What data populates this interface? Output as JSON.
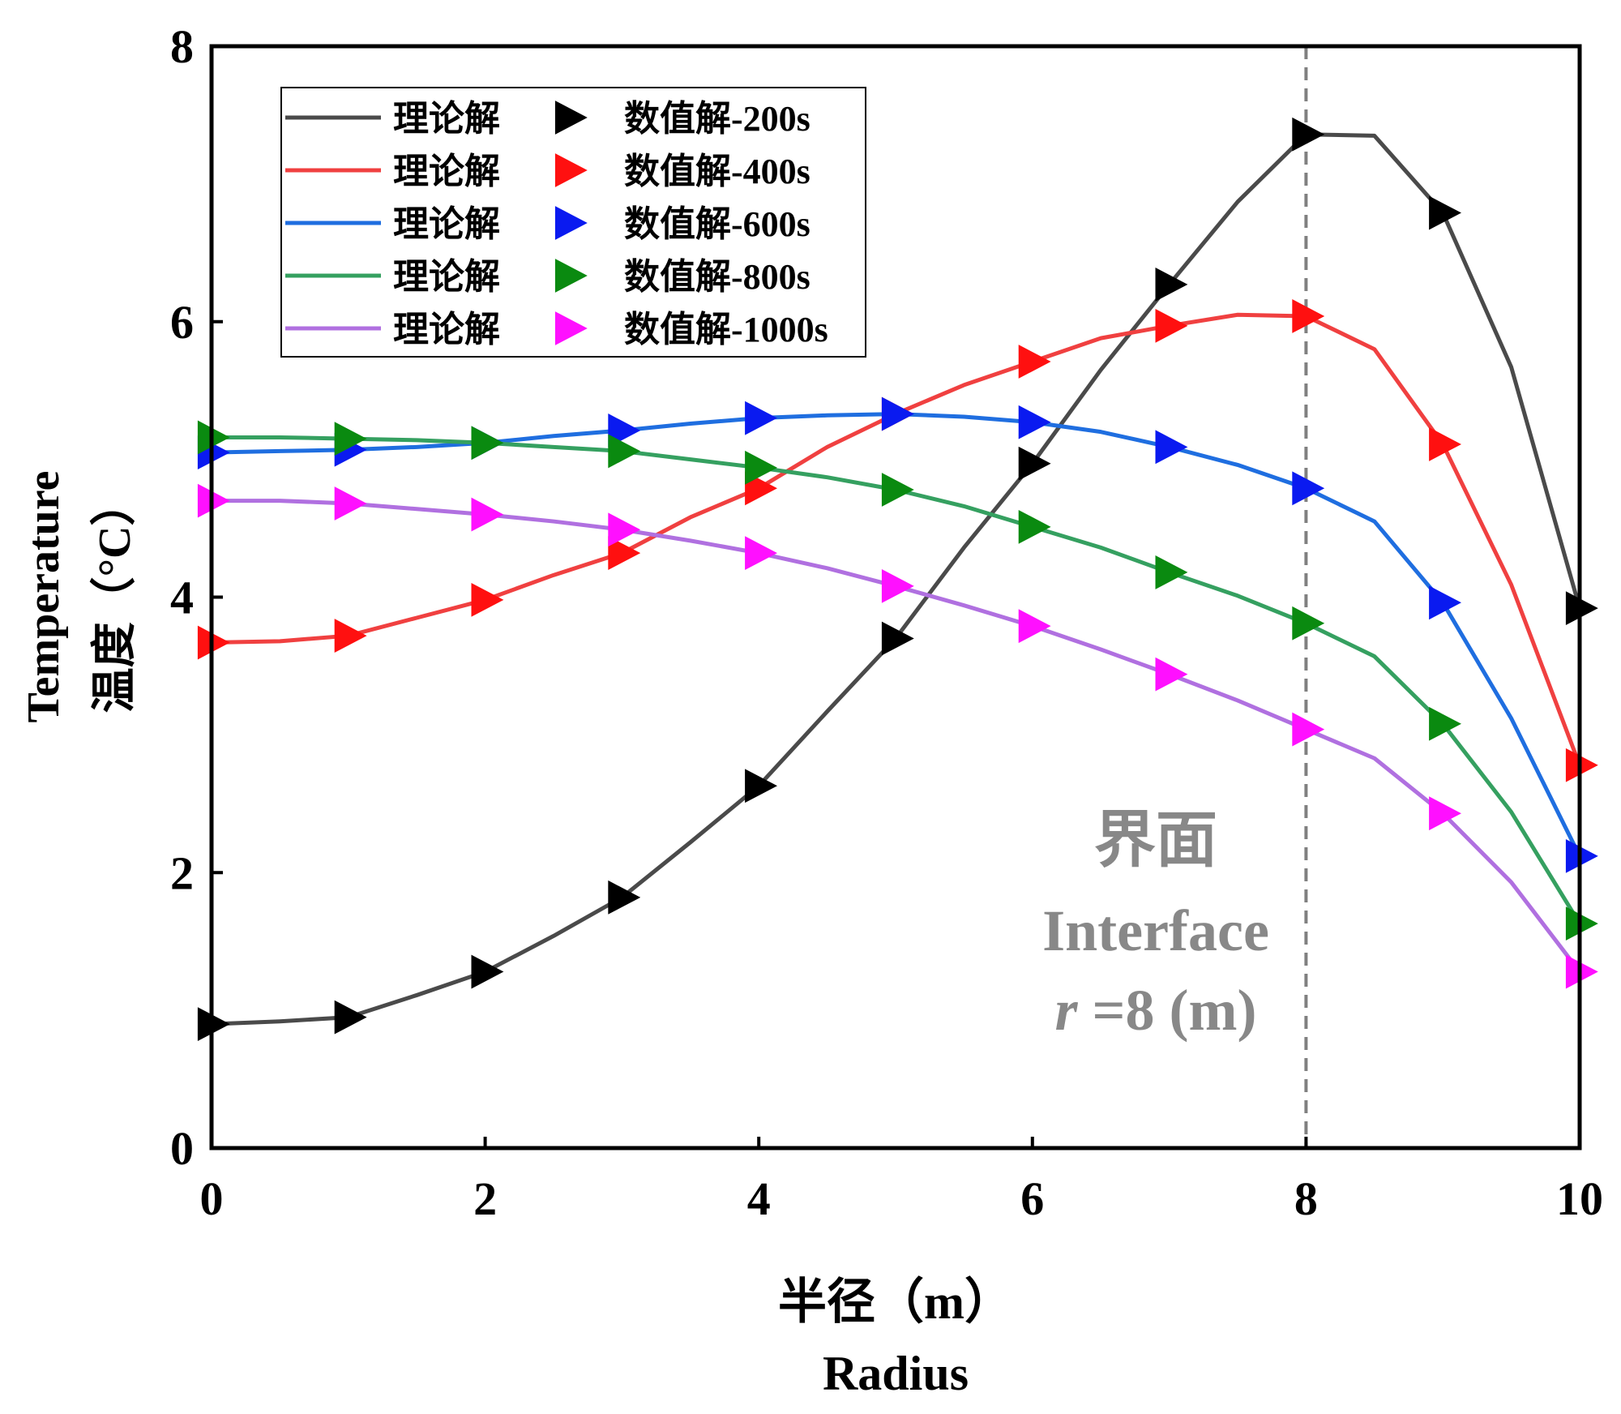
{
  "chart_data": {
    "type": "line",
    "xlabel_cn": "半径（m）",
    "xlabel_en": "Radius",
    "ylabel_en": "Temperature",
    "ylabel_cn": "温度（°C）",
    "xlim": [
      0,
      10
    ],
    "ylim": [
      0,
      8
    ],
    "xticks": [
      "0",
      "2",
      "4",
      "6",
      "8",
      "10"
    ],
    "yticks": [
      "0",
      "2",
      "4",
      "6",
      "8"
    ],
    "grid": false,
    "legend_position": "top-left",
    "x": [
      0,
      0.5,
      1,
      1.5,
      2,
      2.5,
      3,
      3.5,
      4,
      4.5,
      5,
      5.5,
      6,
      6.5,
      7,
      7.5,
      8,
      8.5,
      9,
      9.5,
      10
    ],
    "marker_x": [
      0,
      1,
      2,
      3,
      4,
      5,
      6,
      7,
      8,
      9,
      10
    ],
    "series": [
      {
        "name": "理论解",
        "marker_name": "数值解-200s",
        "line_color": "#4a4a4a",
        "marker_color": "#000000",
        "values": [
          0.9,
          0.92,
          0.95,
          1.11,
          1.28,
          1.54,
          1.82,
          2.22,
          2.63,
          3.17,
          3.7,
          4.36,
          4.97,
          5.65,
          6.27,
          6.87,
          7.36,
          7.35,
          6.79,
          5.67,
          3.92
        ],
        "marker_values": [
          0.9,
          0.95,
          1.28,
          1.82,
          2.63,
          3.7,
          4.97,
          6.27,
          7.36,
          6.79,
          3.92
        ]
      },
      {
        "name": "理论解",
        "marker_name": "数值解-400s",
        "line_color": "#f04040",
        "marker_color": "#ff1010",
        "values": [
          3.67,
          3.68,
          3.72,
          3.85,
          3.98,
          4.16,
          4.32,
          4.58,
          4.79,
          5.09,
          5.33,
          5.54,
          5.71,
          5.88,
          5.97,
          6.05,
          6.04,
          5.8,
          5.11,
          4.09,
          2.78
        ],
        "marker_values": [
          3.67,
          3.72,
          3.98,
          4.32,
          4.79,
          5.33,
          5.71,
          5.97,
          6.04,
          5.11,
          2.78
        ]
      },
      {
        "name": "理论解",
        "marker_name": "数值解-600s",
        "line_color": "#1f6ee0",
        "marker_color": "#0a1af0",
        "values": [
          5.05,
          5.06,
          5.07,
          5.09,
          5.12,
          5.17,
          5.21,
          5.26,
          5.3,
          5.32,
          5.33,
          5.31,
          5.27,
          5.2,
          5.09,
          4.96,
          4.79,
          4.55,
          3.96,
          3.12,
          2.12
        ],
        "marker_values": [
          5.05,
          5.07,
          5.12,
          5.21,
          5.3,
          5.33,
          5.27,
          5.09,
          4.79,
          3.96,
          2.12
        ]
      },
      {
        "name": "理论解",
        "marker_name": "数值解-800s",
        "line_color": "#35a060",
        "marker_color": "#0a8a10",
        "values": [
          5.16,
          5.16,
          5.15,
          5.14,
          5.12,
          5.09,
          5.06,
          5.0,
          4.94,
          4.87,
          4.78,
          4.66,
          4.51,
          4.36,
          4.18,
          4.01,
          3.81,
          3.57,
          3.08,
          2.44,
          1.63
        ],
        "marker_values": [
          5.16,
          5.15,
          5.12,
          5.06,
          4.94,
          4.78,
          4.51,
          4.18,
          3.81,
          3.08,
          1.63
        ]
      },
      {
        "name": "理论解",
        "marker_name": "数值解-1000s",
        "line_color": "#b070e0",
        "marker_color": "#ff10ff",
        "values": [
          4.7,
          4.7,
          4.68,
          4.64,
          4.6,
          4.55,
          4.49,
          4.41,
          4.32,
          4.21,
          4.08,
          3.94,
          3.79,
          3.62,
          3.44,
          3.25,
          3.04,
          2.83,
          2.43,
          1.93,
          1.28
        ],
        "marker_values": [
          4.7,
          4.68,
          4.6,
          4.49,
          4.32,
          4.08,
          3.79,
          3.44,
          3.04,
          2.43,
          1.28
        ]
      }
    ],
    "annotation": {
      "x": 8,
      "line_color": "#808080",
      "text_color": "#888888",
      "label_cn": "界面",
      "label_en": "Interface",
      "label_r": "r",
      "label_val": " =8 (m)"
    }
  }
}
